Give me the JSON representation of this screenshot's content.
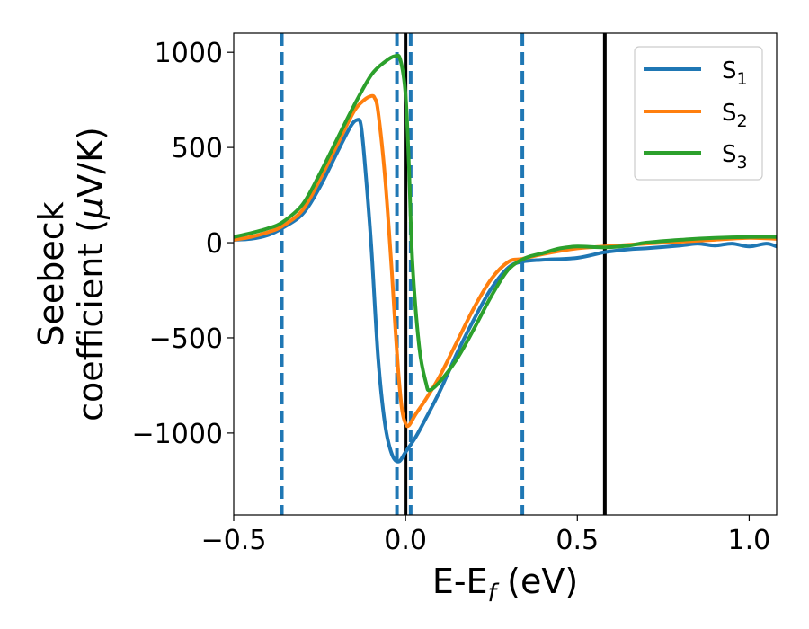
{
  "chart_data": {
    "type": "line",
    "xlabel": "E-E",
    "xlabel_sub": "f",
    "xlabel_unit": " (eV)",
    "ylabel_line1": "Seebeck",
    "ylabel_line2": "coefficient  (",
    "ylabel_mu": "μ",
    "ylabel_unit": "V/K)",
    "xlim": [
      -0.5,
      1.08
    ],
    "ylim": [
      -1430,
      1100
    ],
    "xticks": [
      -0.5,
      0.0,
      0.5,
      1.0
    ],
    "xtick_labels": [
      "−0.5",
      "0.0",
      "0.5",
      "1.0"
    ],
    "yticks": [
      1000,
      500,
      0,
      -500,
      -1000
    ],
    "ytick_labels": [
      "1000",
      "500",
      "0",
      "−500",
      "−1000"
    ],
    "legend_position": "top-right",
    "grid": false,
    "series": [
      {
        "name": "S1",
        "label_base": "S",
        "label_sub": "1",
        "color": "#1f77b4",
        "x": [
          -0.5,
          -0.45,
          -0.4,
          -0.36,
          -0.3,
          -0.25,
          -0.2,
          -0.16,
          -0.14,
          -0.13,
          -0.12,
          -0.1,
          -0.08,
          -0.06,
          -0.04,
          -0.02,
          0.0,
          0.03,
          0.06,
          0.1,
          0.15,
          0.2,
          0.25,
          0.3,
          0.34,
          0.4,
          0.5,
          0.58,
          0.65,
          0.7,
          0.8,
          0.85,
          0.9,
          0.95,
          1.0,
          1.05,
          1.08
        ],
        "y": [
          15,
          20,
          40,
          75,
          150,
          290,
          470,
          610,
          645,
          620,
          450,
          -10,
          -600,
          -950,
          -1110,
          -1150,
          -1100,
          -1020,
          -920,
          -780,
          -580,
          -400,
          -240,
          -130,
          -100,
          -90,
          -80,
          -50,
          -35,
          -30,
          -15,
          -5,
          -15,
          -5,
          -20,
          -5,
          -20
        ]
      },
      {
        "name": "S2",
        "label_base": "S",
        "label_sub": "2",
        "color": "#ff7f0e",
        "x": [
          -0.5,
          -0.45,
          -0.4,
          -0.36,
          -0.3,
          -0.25,
          -0.2,
          -0.15,
          -0.12,
          -0.1,
          -0.09,
          -0.08,
          -0.06,
          -0.04,
          -0.03,
          -0.02,
          -0.01,
          0.0,
          0.01,
          0.03,
          0.06,
          0.1,
          0.15,
          0.2,
          0.25,
          0.3,
          0.34,
          0.4,
          0.5,
          0.58,
          0.7,
          0.8,
          0.9,
          1.0,
          1.08
        ],
        "y": [
          15,
          30,
          55,
          85,
          170,
          330,
          510,
          690,
          750,
          770,
          760,
          690,
          350,
          -150,
          -440,
          -700,
          -880,
          -950,
          -960,
          -900,
          -820,
          -700,
          -520,
          -340,
          -190,
          -100,
          -85,
          -60,
          -30,
          -20,
          -5,
          5,
          15,
          25,
          20
        ]
      },
      {
        "name": "S3",
        "label_base": "S",
        "label_sub": "3",
        "color": "#2ca02c",
        "x": [
          -0.5,
          -0.45,
          -0.4,
          -0.36,
          -0.3,
          -0.25,
          -0.2,
          -0.15,
          -0.1,
          -0.06,
          -0.03,
          -0.015,
          0.0,
          0.01,
          0.02,
          0.04,
          0.06,
          0.07,
          0.1,
          0.15,
          0.2,
          0.25,
          0.3,
          0.35,
          0.4,
          0.45,
          0.5,
          0.58,
          0.65,
          0.7,
          0.8,
          0.9,
          1.0,
          1.08
        ],
        "y": [
          30,
          50,
          75,
          105,
          200,
          360,
          540,
          720,
          880,
          950,
          980,
          960,
          780,
          400,
          -100,
          -550,
          -740,
          -775,
          -730,
          -610,
          -450,
          -280,
          -140,
          -80,
          -55,
          -30,
          -20,
          -25,
          -15,
          0,
          15,
          25,
          30,
          30
        ]
      }
    ],
    "vlines": [
      {
        "x": -0.36,
        "style": "dashed",
        "color": "#1f77b4"
      },
      {
        "x": -0.025,
        "style": "dashed",
        "color": "#1f77b4"
      },
      {
        "x": 0.015,
        "style": "dashed",
        "color": "#1f77b4"
      },
      {
        "x": 0.34,
        "style": "dashed",
        "color": "#1f77b4"
      },
      {
        "x": 0.0,
        "style": "solid",
        "color": "#000000"
      },
      {
        "x": 0.58,
        "style": "solid",
        "color": "#000000"
      }
    ]
  }
}
